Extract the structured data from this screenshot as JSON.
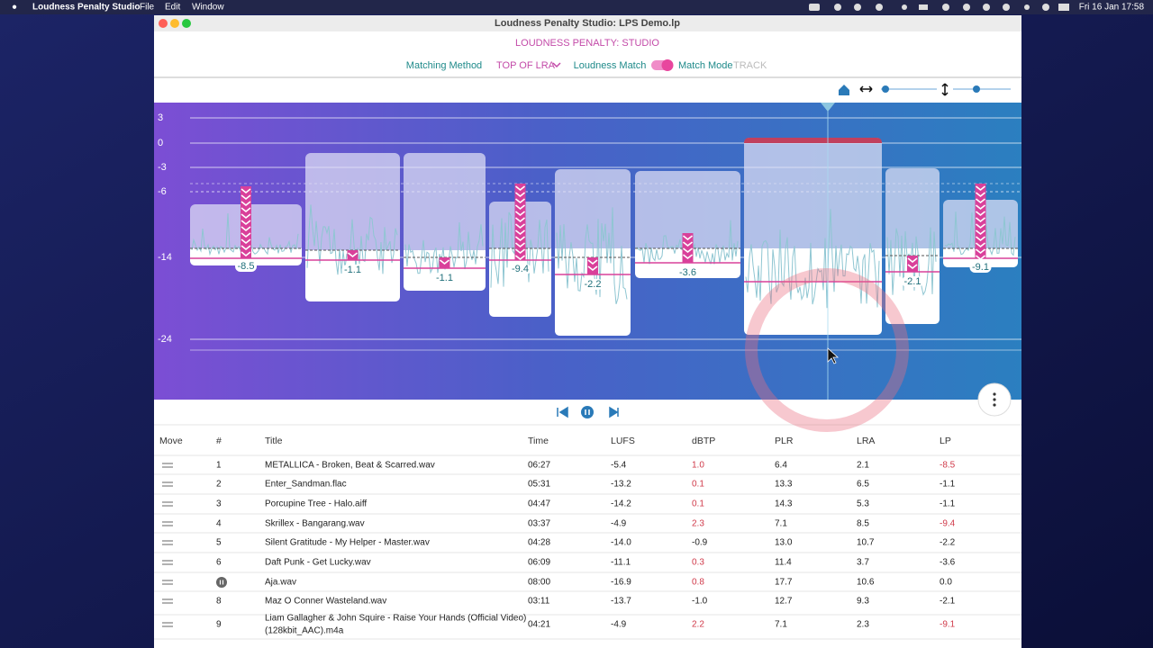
{
  "menubar": {
    "app": "Loudness Penalty Studio",
    "menus": [
      "File",
      "Edit",
      "Window"
    ],
    "clock": "Fri 16 Jan  17:58"
  },
  "window": {
    "title": "Loudness Penalty Studio: LPS Demo.lp"
  },
  "header": {
    "title": "LOUDNESS PENALTY: STUDIO",
    "matching_method_label": "Matching Method",
    "matching_method": "TOP OF LRA",
    "loudness_match": "Loudness Match",
    "match_mode": "Match Mode",
    "match_mode_value": "TRACK"
  },
  "graph": {
    "scale_labels": [
      "3",
      "0",
      "-3",
      "-6",
      "-14",
      "-24"
    ]
  },
  "table": {
    "columns": [
      "Move",
      "#",
      "Title",
      "Time",
      "LUFS",
      "dBTP",
      "PLR",
      "LRA",
      "LP"
    ],
    "rows": [
      {
        "num": "1",
        "title": "METALLICA - Broken, Beat & Scarred.wav",
        "time": "06:27",
        "lufs": "-5.4",
        "dbtp": "1.0",
        "plr": "6.4",
        "lra": "2.1",
        "lp": "-8.5"
      },
      {
        "num": "2",
        "title": "Enter_Sandman.flac",
        "time": "05:31",
        "lufs": "-13.2",
        "dbtp": "0.1",
        "plr": "13.3",
        "lra": "6.5",
        "lp": "-1.1"
      },
      {
        "num": "3",
        "title": "Porcupine Tree - Halo.aiff",
        "time": "04:47",
        "lufs": "-14.2",
        "dbtp": "0.1",
        "plr": "14.3",
        "lra": "5.3",
        "lp": "-1.1"
      },
      {
        "num": "4",
        "title": "Skrillex - Bangarang.wav",
        "time": "03:37",
        "lufs": "-4.9",
        "dbtp": "2.3",
        "plr": "7.1",
        "lra": "8.5",
        "lp": "-9.4"
      },
      {
        "num": "5",
        "title": "Silent Gratitude - My Helper - Master.wav",
        "time": "04:28",
        "lufs": "-14.0",
        "dbtp": "-0.9",
        "plr": "13.0",
        "lra": "10.7",
        "lp": "-2.2"
      },
      {
        "num": "6",
        "title": "Daft Punk - Get Lucky.wav",
        "time": "06:09",
        "lufs": "-11.1",
        "dbtp": "0.3",
        "plr": "11.4",
        "lra": "3.7",
        "lp": "-3.6"
      },
      {
        "title": "Aja.wav",
        "time": "08:00",
        "lufs": "-16.9",
        "dbtp": "0.8",
        "plr": "17.7",
        "lra": "10.6",
        "lp": "0.0"
      },
      {
        "num": "8",
        "title": "Maz O Conner Wasteland.wav",
        "time": "03:11",
        "lufs": "-13.7",
        "dbtp": "-1.0",
        "plr": "12.7",
        "lra": "9.3",
        "lp": "-2.1"
      },
      {
        "num": "9",
        "title": "Liam Gallagher & John Squire - Raise Your Hands (Official Video)",
        "title2": "(128kbit_AAC).m4a",
        "time": "04:21",
        "lufs": "-4.9",
        "dbtp": "2.2",
        "plr": "7.1",
        "lra": "2.3",
        "lp": "-9.1"
      }
    ]
  }
}
